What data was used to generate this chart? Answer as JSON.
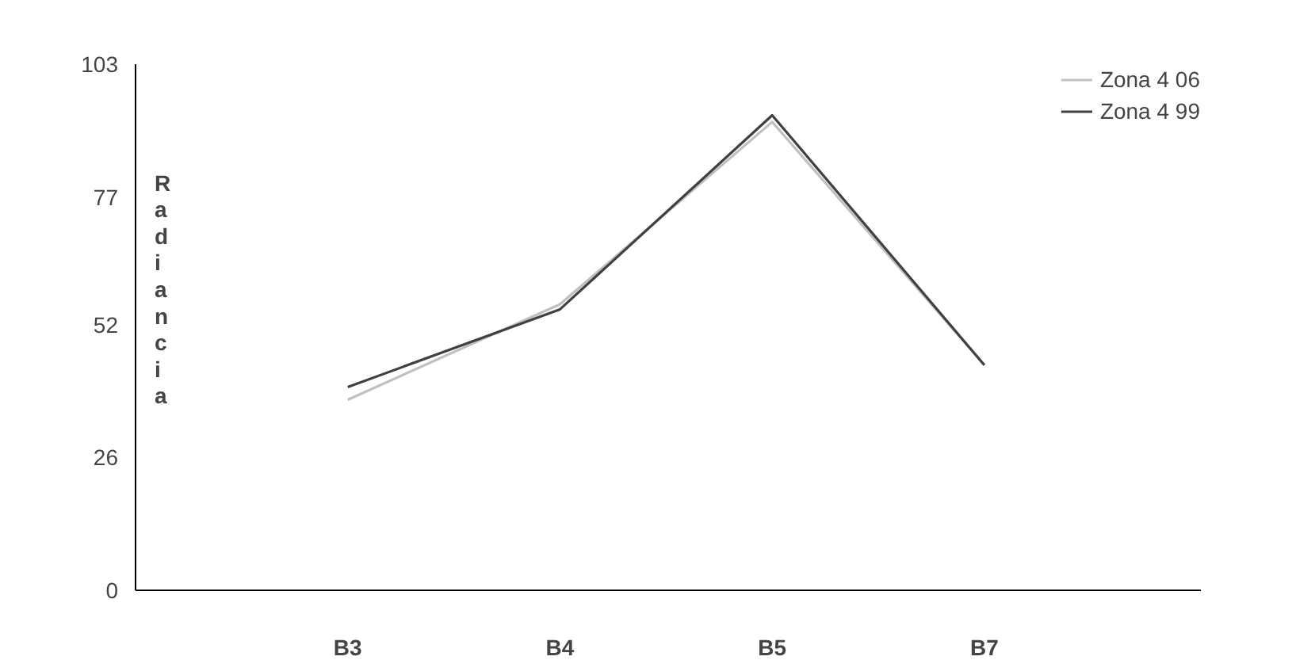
{
  "chart_data": {
    "type": "line",
    "ylabel": "Radiancia",
    "categories": [
      "B3",
      "B4",
      "B5",
      "B7"
    ],
    "series": [
      {
        "name": "Zona 4 06",
        "color": "#c0c0c0",
        "values": [
          37.3,
          56,
          91.7,
          44.1
        ]
      },
      {
        "name": "Zona 4 99",
        "color": "#404040",
        "values": [
          39.8,
          55,
          93,
          44.1
        ]
      }
    ],
    "ylim": [
      0,
      103
    ],
    "yticks": [
      0,
      26,
      52,
      77,
      103
    ],
    "grid": false,
    "legend": "top right",
    "marker": "none",
    "line_style": "solid"
  }
}
